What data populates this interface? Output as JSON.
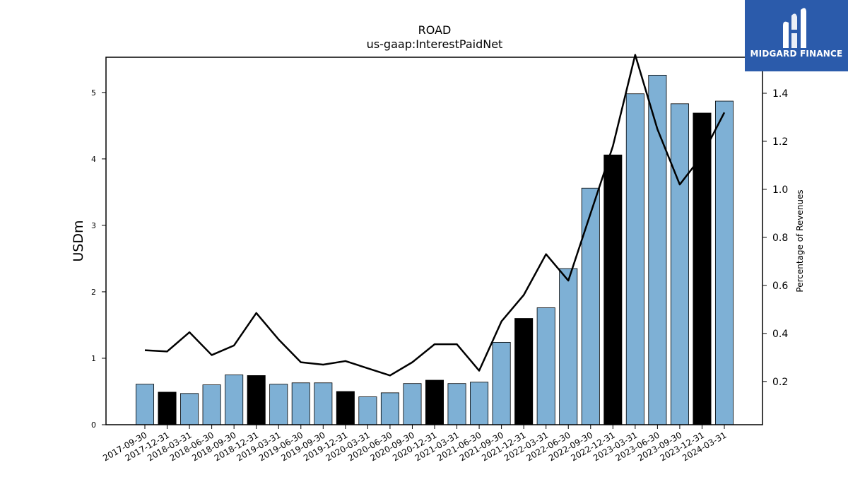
{
  "chart_data": {
    "type": "bar",
    "title": "ROAD",
    "subtitle": "us-gaap:InterestPaidNet",
    "ylabel": "USDm",
    "y2label": "Percentage of Revenues",
    "ylim": [
      0,
      5.53
    ],
    "y2lim": [
      0.02,
      1.55
    ],
    "yticks": [
      0,
      1,
      2,
      3,
      4,
      5
    ],
    "y2ticks": [
      0.2,
      0.4,
      0.6,
      0.8,
      1.0,
      1.2,
      1.4
    ],
    "categories": [
      "2017-09-30",
      "2017-12-31",
      "2018-03-31",
      "2018-06-30",
      "2018-09-30",
      "2018-12-31",
      "2019-03-31",
      "2019-06-30",
      "2019-09-30",
      "2019-12-31",
      "2020-03-31",
      "2020-06-30",
      "2020-09-30",
      "2020-12-31",
      "2021-03-31",
      "2021-06-30",
      "2021-09-30",
      "2021-12-31",
      "2022-03-31",
      "2022-06-30",
      "2022-09-30",
      "2022-12-31",
      "2023-03-31",
      "2023-06-30",
      "2023-09-30",
      "2023-12-31",
      "2024-03-31"
    ],
    "series": [
      {
        "kind": "bar",
        "values": [
          0.61,
          0.49,
          0.47,
          0.6,
          0.75,
          0.74,
          0.61,
          0.63,
          0.63,
          0.5,
          0.42,
          0.48,
          0.62,
          0.67,
          0.62,
          0.64,
          1.24,
          1.6,
          1.76,
          2.35,
          3.56,
          4.06,
          4.98,
          5.26,
          4.83,
          4.69,
          4.87
        ],
        "fiscal_year_end": [
          false,
          true,
          false,
          false,
          false,
          true,
          false,
          false,
          false,
          true,
          false,
          false,
          false,
          true,
          false,
          false,
          false,
          true,
          false,
          false,
          false,
          true,
          false,
          false,
          false,
          true,
          false
        ],
        "color": "#7eb0d5",
        "highlight_color": "#000000"
      },
      {
        "kind": "line",
        "axis": "right",
        "values": [
          0.33,
          0.325,
          0.405,
          0.31,
          0.35,
          0.485,
          0.375,
          0.28,
          0.27,
          0.285,
          0.255,
          0.225,
          0.28,
          0.355,
          0.355,
          0.245,
          0.45,
          0.56,
          0.73,
          0.62,
          0.9,
          1.18,
          1.56,
          1.25,
          1.02,
          1.14,
          1.32
        ],
        "color": "#000000"
      }
    ],
    "legend": "none",
    "grid": false
  },
  "logo": {
    "text": "MIDGARD FINANCE",
    "color": "#2b5bab",
    "icon": "midgard-logo-icon"
  }
}
